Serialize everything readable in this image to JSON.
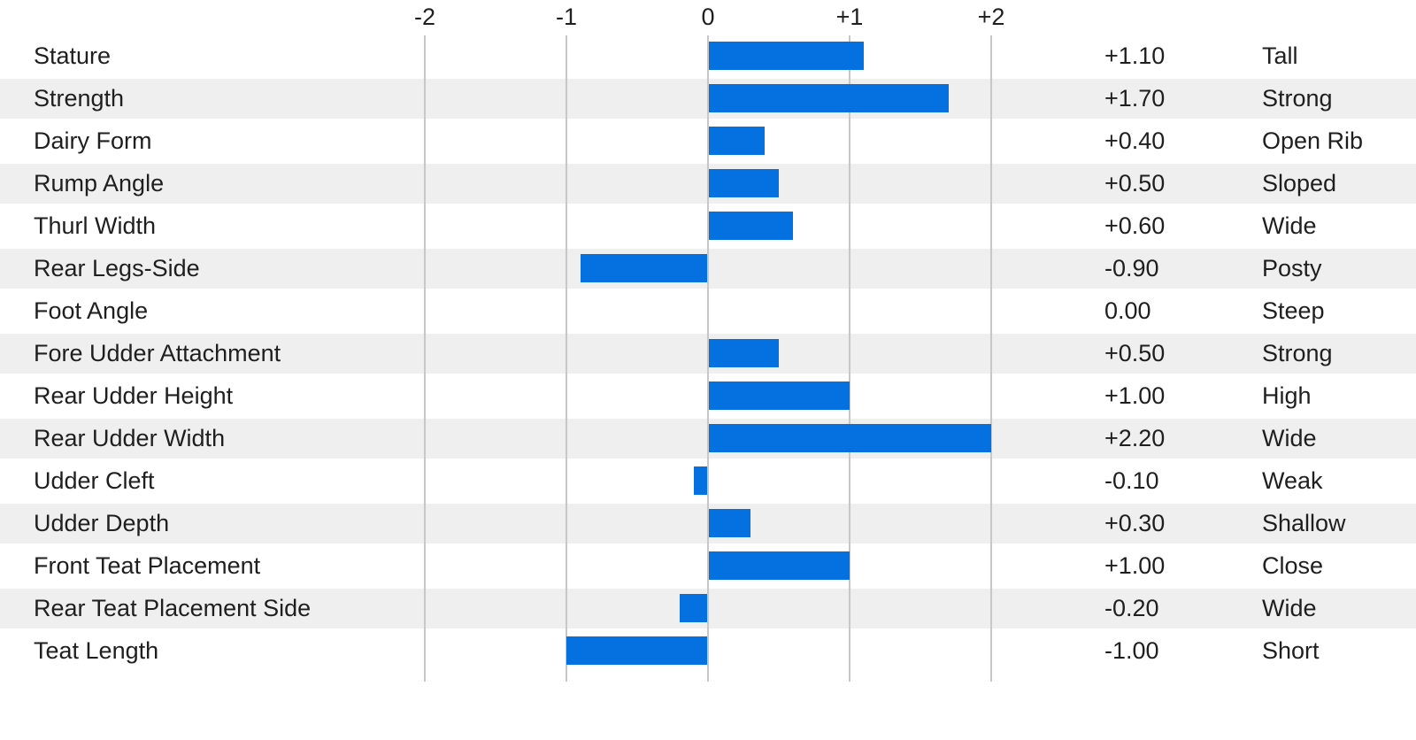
{
  "chart_data": {
    "type": "bar",
    "orientation": "horizontal",
    "title": "",
    "xlabel": "",
    "ylabel": "",
    "xlim": [
      -2,
      2
    ],
    "grid": "vertical-gridlines-only",
    "legend": null,
    "axis_ticks": [
      {
        "label": "-2",
        "value": -2
      },
      {
        "label": "-1",
        "value": -1
      },
      {
        "label": "0",
        "value": 0
      },
      {
        "label": "+1",
        "value": 1
      },
      {
        "label": "+2",
        "value": 2
      }
    ],
    "rows": [
      {
        "trait": "Stature",
        "value": 1.1,
        "value_label": "+1.10",
        "descriptor": "Tall"
      },
      {
        "trait": "Strength",
        "value": 1.7,
        "value_label": "+1.70",
        "descriptor": "Strong"
      },
      {
        "trait": "Dairy Form",
        "value": 0.4,
        "value_label": "+0.40",
        "descriptor": "Open Rib"
      },
      {
        "trait": "Rump Angle",
        "value": 0.5,
        "value_label": "+0.50",
        "descriptor": "Sloped"
      },
      {
        "trait": "Thurl Width",
        "value": 0.6,
        "value_label": "+0.60",
        "descriptor": "Wide"
      },
      {
        "trait": "Rear Legs-Side",
        "value": -0.9,
        "value_label": "-0.90",
        "descriptor": "Posty"
      },
      {
        "trait": "Foot Angle",
        "value": 0,
        "value_label": "0.00",
        "descriptor": "Steep"
      },
      {
        "trait": "Fore Udder Attachment",
        "value": 0.5,
        "value_label": "+0.50",
        "descriptor": "Strong"
      },
      {
        "trait": "Rear Udder Height",
        "value": 1.0,
        "value_label": "+1.00",
        "descriptor": "High"
      },
      {
        "trait": "Rear Udder Width",
        "value": 2.2,
        "value_label": "+2.20",
        "descriptor": "Wide"
      },
      {
        "trait": "Udder Cleft",
        "value": -0.1,
        "value_label": "-0.10",
        "descriptor": "Weak"
      },
      {
        "trait": "Udder Depth",
        "value": 0.3,
        "value_label": "+0.30",
        "descriptor": "Shallow"
      },
      {
        "trait": "Front Teat Placement",
        "value": 1.0,
        "value_label": "+1.00",
        "descriptor": "Close"
      },
      {
        "trait": "Rear Teat Placement Side",
        "value": -0.2,
        "value_label": "-0.20",
        "descriptor": "Wide"
      },
      {
        "trait": "Teat Length",
        "value": -1.0,
        "value_label": "-1.00",
        "descriptor": "Short"
      }
    ],
    "colors": {
      "bar": "#0571e1",
      "row_stripe": "#efefef",
      "gridline": "#c7c7c7",
      "text": "#1f1f1f",
      "background": "#ffffff"
    }
  }
}
